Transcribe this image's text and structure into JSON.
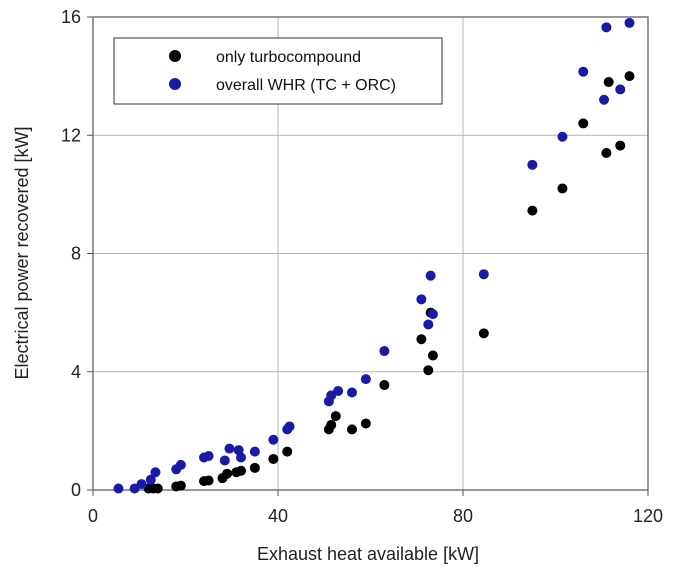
{
  "chart_data": {
    "type": "scatter",
    "title": "",
    "xlabel": "Exhaust heat available [kW]",
    "ylabel": "Electrical power recovered [kW]",
    "xlim": [
      0,
      120
    ],
    "ylim": [
      0,
      16
    ],
    "xticks": [
      "0",
      "40",
      "80",
      "120"
    ],
    "yticks": [
      "0",
      "4",
      "8",
      "12",
      "16"
    ],
    "grid": true,
    "legend_position": "top-left",
    "series": [
      {
        "name": "only turbocompound",
        "color": "#000000",
        "points": [
          [
            12.0,
            0.05
          ],
          [
            13.0,
            0.05
          ],
          [
            14.0,
            0.05
          ],
          [
            18.0,
            0.12
          ],
          [
            19.0,
            0.15
          ],
          [
            24.0,
            0.3
          ],
          [
            25.0,
            0.32
          ],
          [
            28.0,
            0.4
          ],
          [
            29.0,
            0.55
          ],
          [
            31.0,
            0.6
          ],
          [
            32.0,
            0.65
          ],
          [
            35.0,
            0.75
          ],
          [
            39.0,
            1.05
          ],
          [
            42.0,
            1.3
          ],
          [
            51.0,
            2.05
          ],
          [
            51.5,
            2.2
          ],
          [
            52.5,
            2.5
          ],
          [
            56.0,
            2.05
          ],
          [
            59.0,
            2.25
          ],
          [
            63.0,
            3.55
          ],
          [
            71.0,
            5.1
          ],
          [
            72.5,
            4.05
          ],
          [
            73.0,
            6.0
          ],
          [
            73.5,
            4.55
          ],
          [
            84.5,
            5.3
          ],
          [
            95.0,
            9.45
          ],
          [
            101.5,
            10.2
          ],
          [
            106.0,
            12.4
          ],
          [
            111.0,
            11.4
          ],
          [
            111.5,
            13.8
          ],
          [
            114.0,
            11.65
          ],
          [
            116.0,
            14.0
          ]
        ]
      },
      {
        "name": "overall WHR (TC + ORC)",
        "color": "#1a1aa6",
        "points": [
          [
            5.5,
            0.05
          ],
          [
            9.0,
            0.05
          ],
          [
            10.5,
            0.2
          ],
          [
            12.5,
            0.35
          ],
          [
            13.5,
            0.6
          ],
          [
            18.0,
            0.7
          ],
          [
            19.0,
            0.85
          ],
          [
            24.0,
            1.1
          ],
          [
            25.0,
            1.15
          ],
          [
            28.5,
            1.0
          ],
          [
            29.5,
            1.4
          ],
          [
            31.5,
            1.35
          ],
          [
            32.0,
            1.1
          ],
          [
            35.0,
            1.3
          ],
          [
            39.0,
            1.7
          ],
          [
            42.0,
            2.05
          ],
          [
            42.5,
            2.15
          ],
          [
            51.0,
            3.0
          ],
          [
            51.5,
            3.2
          ],
          [
            53.0,
            3.35
          ],
          [
            56.0,
            3.3
          ],
          [
            59.0,
            3.75
          ],
          [
            63.0,
            4.7
          ],
          [
            71.0,
            6.45
          ],
          [
            72.5,
            5.6
          ],
          [
            73.0,
            7.25
          ],
          [
            73.5,
            5.95
          ],
          [
            84.5,
            7.3
          ],
          [
            95.0,
            11.0
          ],
          [
            101.5,
            11.95
          ],
          [
            106.0,
            14.15
          ],
          [
            110.5,
            13.2
          ],
          [
            111.0,
            15.65
          ],
          [
            114.0,
            13.55
          ],
          [
            116.0,
            15.8
          ]
        ]
      }
    ]
  }
}
